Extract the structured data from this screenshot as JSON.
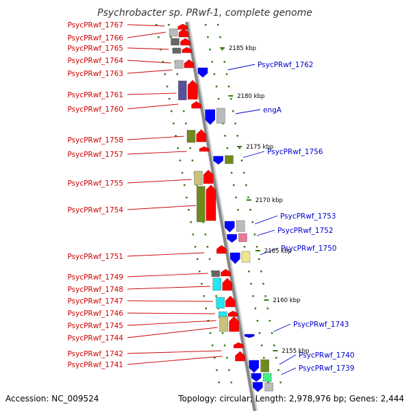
{
  "title": "Psychrobacter sp. PRwf-1, complete genome",
  "footer": {
    "accession": "Accession: NC_009524",
    "summary": "Topology: circular; Length: 2,978,976 bp; Genes: 2,444"
  },
  "colors": {
    "forward_arrow": "#ff0000",
    "reverse_arrow": "#0000ff",
    "left_label": "#cc0000",
    "right_label": "#0000cc",
    "tick": "#2f7a12",
    "backbone": "#888888",
    "cog_gray": "#bbbbbb",
    "cog_darkgray": "#666666",
    "cog_olive": "#6f8a1e",
    "cog_khaki": "#c8c27a",
    "cog_purple": "#5a4f9a",
    "cog_cyan": "#22e6f0",
    "cog_pink": "#e87a9a",
    "cog_yellow": "#f0e68c",
    "cog_green": "#44ee88"
  },
  "kbp_ticks": [
    "2185 kbp",
    "2180 kbp",
    "2175 kbp",
    "2170 kbp",
    "2165 kbp",
    "2160 kbp",
    "2155 kbp"
  ],
  "left_labels": [
    "PsycPRwf_1767",
    "PsycPRwf_1766",
    "PsycPRwf_1765",
    "PsycPRwf_1764",
    "PsycPRwf_1763",
    "PsycPRwf_1761",
    "PsycPRwf_1760",
    "PsycPRwf_1758",
    "PsycPRwf_1757",
    "PsycPRwf_1755",
    "PsycPRwf_1754",
    "PsycPRwf_1751",
    "PsycPRwf_1749",
    "PsycPRwf_1748",
    "PsycPRwf_1747",
    "PsycPRwf_1746",
    "PsycPRwf_1745",
    "PsycPRwf_1744",
    "PsycPRwf_1742",
    "PsycPRwf_1741"
  ],
  "right_labels": [
    "PsycPRwf_1762",
    "engA",
    "PsycPRwf_1756",
    "PsycPRwf_1753",
    "PsycPRwf_1752",
    "PsycPRwf_1750",
    "PsycPRwf_1743",
    "PsycPRwf_1740",
    "PsycPRwf_1739"
  ]
}
